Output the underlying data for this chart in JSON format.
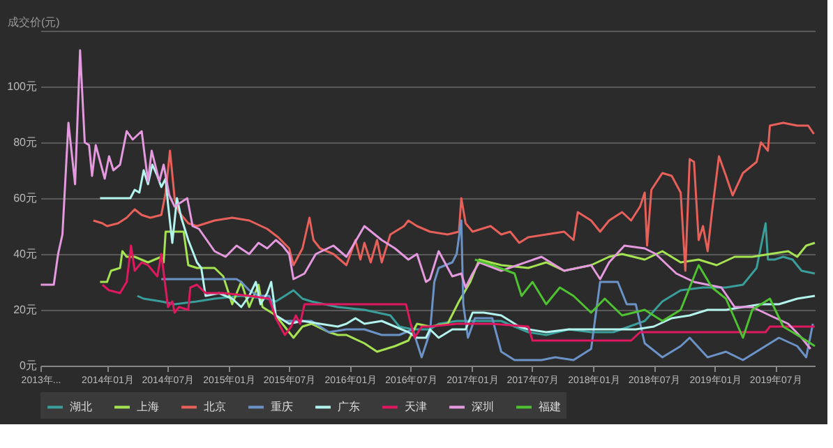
{
  "chart_data": {
    "type": "line",
    "ylabel": "成交价(元)",
    "grid": "y",
    "legend": "bottom",
    "xlim": [
      "2013-06-15",
      "2019-10-28"
    ],
    "xticks": [
      {
        "value": "2013-06-15",
        "label": "2013年..."
      },
      {
        "value": "2014-01-01",
        "label": "2014年01月"
      },
      {
        "value": "2014-07-01",
        "label": "2014年07月"
      },
      {
        "value": "2015-01-01",
        "label": "2015年01月"
      },
      {
        "value": "2015-07-01",
        "label": "2015年07月"
      },
      {
        "value": "2016-01-01",
        "label": "2016年01月"
      },
      {
        "value": "2016-07-01",
        "label": "2016年07月"
      },
      {
        "value": "2017-01-01",
        "label": "2017年01月"
      },
      {
        "value": "2017-07-01",
        "label": "2017年07月"
      },
      {
        "value": "2018-01-01",
        "label": "2018年01月"
      },
      {
        "value": "2018-07-01",
        "label": "2018年07月"
      },
      {
        "value": "2019-01-01",
        "label": "2019年01月"
      },
      {
        "value": "2019-07-01",
        "label": "2019年07月"
      }
    ],
    "ylim": [
      0,
      120
    ],
    "yticks": [
      {
        "value": 0,
        "label": "0元"
      },
      {
        "value": 20,
        "label": "20元"
      },
      {
        "value": 40,
        "label": "40元"
      },
      {
        "value": 60,
        "label": "60元"
      },
      {
        "value": 80,
        "label": "80元"
      },
      {
        "value": 100,
        "label": "100元"
      },
      {
        "value": 120,
        "label": null
      }
    ],
    "series": [
      {
        "name": "湖北",
        "color": "#3a9e9a",
        "x": [
          "2014-04-02",
          "2014-04-21",
          "2014-06-13",
          "2014-07-23",
          "2014-09-28",
          "2014-11-20",
          "2015-02-08",
          "2015-04-27",
          "2015-05-23",
          "2015-06-19",
          "2015-07-15",
          "2015-08-11",
          "2015-09-07",
          "2015-11-25",
          "2016-02-13",
          "2016-05-01",
          "2016-05-28",
          "2016-07-07",
          "2016-08-28",
          "2016-09-23",
          "2016-11-16",
          "2017-03-30",
          "2017-06-19",
          "2017-08-12",
          "2017-10-19",
          "2017-12-25",
          "2018-03-02",
          "2018-06-04",
          "2018-07-27",
          "2018-09-20",
          "2018-11-26",
          "2019-02-03",
          "2019-03-26",
          "2019-05-06",
          "2019-06-02",
          "2019-06-09",
          "2019-06-29",
          "2019-07-25",
          "2019-08-22",
          "2019-09-18",
          "2019-10-28"
        ],
        "values": [
          25,
          24,
          23,
          22,
          23,
          24,
          25,
          24,
          23,
          25,
          27,
          24,
          23,
          21,
          20,
          18,
          14,
          13,
          13,
          15,
          16,
          16,
          12,
          11,
          13,
          12,
          12,
          16,
          23,
          27,
          28,
          28,
          29,
          35,
          51,
          38,
          38,
          39,
          38,
          34,
          33
        ]
      },
      {
        "name": "上海",
        "color": "#a6e353",
        "x": [
          "2013-12-11",
          "2014-01-01",
          "2014-01-13",
          "2014-02-09",
          "2014-02-16",
          "2014-03-01",
          "2014-03-25",
          "2014-05-04",
          "2014-06-13",
          "2014-06-20",
          "2014-06-26",
          "2014-08-19",
          "2014-09-02",
          "2014-09-28",
          "2014-11-20",
          "2014-12-16",
          "2015-01-12",
          "2015-02-08",
          "2015-03-04",
          "2015-04-01",
          "2015-04-13",
          "2015-05-23",
          "2015-07-15",
          "2015-08-11",
          "2015-09-07",
          "2015-10-29",
          "2015-11-25",
          "2015-12-21",
          "2016-02-13",
          "2016-03-22",
          "2016-05-15",
          "2016-06-24",
          "2016-07-20",
          "2016-08-28",
          "2016-10-20",
          "2016-11-23",
          "2016-12-27",
          "2017-01-23",
          "2017-03-30",
          "2017-06-19",
          "2017-08-12",
          "2017-10-05",
          "2017-12-25",
          "2018-02-17",
          "2018-03-28",
          "2018-06-04",
          "2018-07-27",
          "2018-09-20",
          "2018-11-13",
          "2019-01-06",
          "2019-03-01",
          "2019-04-23",
          "2019-06-15",
          "2019-08-09",
          "2019-09-05",
          "2019-10-02",
          "2019-10-28"
        ],
        "values": [
          30,
          30,
          34,
          35,
          41,
          39,
          39,
          37,
          39,
          37,
          48,
          48,
          36,
          35,
          35,
          32,
          22,
          30,
          21,
          29,
          21,
          18,
          10,
          14,
          15,
          12,
          11,
          11,
          8,
          5,
          7,
          9,
          15,
          14,
          15,
          23,
          30,
          38,
          36,
          35,
          37,
          34,
          36,
          39,
          40,
          38,
          41,
          37,
          38,
          36,
          39,
          39,
          40,
          41,
          39,
          43,
          44
        ]
      },
      {
        "name": "北京",
        "color": "#e8605a",
        "x": [
          "2013-11-21",
          "2013-12-18",
          "2014-01-01",
          "2014-02-03",
          "2014-03-01",
          "2014-03-25",
          "2014-04-15",
          "2014-05-11",
          "2014-06-13",
          "2014-06-26",
          "2014-07-09",
          "2014-07-23",
          "2014-08-05",
          "2014-09-02",
          "2014-09-28",
          "2014-11-20",
          "2015-01-12",
          "2015-03-04",
          "2015-04-27",
          "2015-05-30",
          "2015-07-02",
          "2015-07-15",
          "2015-08-11",
          "2015-09-01",
          "2015-09-13",
          "2015-10-03",
          "2015-11-12",
          "2015-12-21",
          "2016-01-17",
          "2016-02-01",
          "2016-02-13",
          "2016-03-03",
          "2016-03-22",
          "2016-04-05",
          "2016-05-01",
          "2016-06-11",
          "2016-06-24",
          "2016-07-20",
          "2016-08-28",
          "2016-10-20",
          "2016-11-23",
          "2016-11-30",
          "2016-12-13",
          "2017-01-03",
          "2017-02-26",
          "2017-03-30",
          "2017-04-26",
          "2017-05-23",
          "2017-06-19",
          "2017-08-12",
          "2017-10-05",
          "2017-11-02",
          "2017-11-15",
          "2017-12-25",
          "2018-01-21",
          "2018-02-17",
          "2018-03-28",
          "2018-04-24",
          "2018-05-21",
          "2018-06-04",
          "2018-06-11",
          "2018-06-24",
          "2018-07-27",
          "2018-08-24",
          "2018-09-20",
          "2018-10-04",
          "2018-10-17",
          "2018-10-30",
          "2018-11-13",
          "2018-11-26",
          "2018-12-10",
          "2018-12-23",
          "2019-01-13",
          "2019-02-03",
          "2019-02-23",
          "2019-03-26",
          "2019-05-06",
          "2019-05-19",
          "2019-06-09",
          "2019-06-15",
          "2019-07-25",
          "2019-09-05",
          "2019-10-08",
          "2019-10-25"
        ],
        "values": [
          52,
          51,
          50,
          51,
          53,
          56,
          54,
          53,
          54,
          62,
          77,
          60,
          55,
          51,
          50,
          52,
          53,
          52,
          49,
          46,
          42,
          36,
          42,
          53,
          45,
          42,
          40,
          36,
          45,
          38,
          44,
          37,
          45,
          37,
          47,
          50,
          52,
          50,
          48,
          47,
          48,
          60,
          51,
          48,
          50,
          47,
          48,
          44,
          46,
          47,
          48,
          45,
          55,
          52,
          48,
          52,
          55,
          52,
          57,
          62,
          43,
          63,
          69,
          68,
          62,
          34,
          74,
          73,
          45,
          50,
          41,
          55,
          75,
          68,
          61,
          69,
          73,
          80,
          77,
          86,
          87,
          86,
          86,
          83
        ]
      },
      {
        "name": "重庆",
        "color": "#6b93c7",
        "x": [
          "2014-06-13",
          "2015-01-25",
          "2015-02-08",
          "2015-03-04",
          "2015-04-01",
          "2015-05-03",
          "2015-05-23",
          "2015-06-19",
          "2015-09-07",
          "2015-10-03",
          "2015-10-29",
          "2015-12-21",
          "2016-02-13",
          "2016-04-05",
          "2016-05-28",
          "2016-07-07",
          "2016-08-03",
          "2016-08-28",
          "2016-09-10",
          "2016-09-23",
          "2016-11-03",
          "2016-11-16",
          "2016-11-30",
          "2016-12-06",
          "2016-12-20",
          "2017-01-10",
          "2017-03-03",
          "2017-03-30",
          "2017-05-09",
          "2017-07-29",
          "2017-09-08",
          "2017-11-02",
          "2017-12-25",
          "2018-01-21",
          "2018-03-15",
          "2018-04-11",
          "2018-05-08",
          "2018-06-04",
          "2018-07-27",
          "2018-09-20",
          "2018-10-17",
          "2018-12-10",
          "2019-02-03",
          "2019-03-26",
          "2019-05-19",
          "2019-07-12",
          "2019-09-05",
          "2019-10-02",
          "2019-10-22"
        ],
        "values": [
          31,
          31,
          30,
          27,
          25,
          25,
          18,
          16,
          16,
          14,
          12,
          13,
          13,
          11,
          11,
          13,
          3,
          12,
          30,
          35,
          37,
          40,
          52,
          22,
          10,
          17,
          17,
          5,
          2,
          2,
          3,
          2,
          6,
          30,
          30,
          22,
          22,
          8,
          3,
          7,
          10,
          3,
          5,
          2,
          6,
          10,
          7,
          3,
          15
        ]
      },
      {
        "name": "广东",
        "color": "#b4f4ef",
        "x": [
          "2013-12-11",
          "2014-03-12",
          "2014-03-25",
          "2014-04-08",
          "2014-04-21",
          "2014-05-04",
          "2014-05-17",
          "2014-06-01",
          "2014-06-13",
          "2014-06-26",
          "2014-07-03",
          "2014-07-16",
          "2014-07-30",
          "2014-08-12",
          "2014-09-02",
          "2014-09-28",
          "2014-10-11",
          "2014-10-24",
          "2014-12-03",
          "2015-01-12",
          "2015-02-08",
          "2015-03-04",
          "2015-03-24",
          "2015-04-07",
          "2015-04-27",
          "2015-05-09",
          "2015-05-23",
          "2015-07-02",
          "2015-08-11",
          "2015-10-03",
          "2015-11-25",
          "2015-12-21",
          "2016-01-17",
          "2016-02-13",
          "2016-04-05",
          "2016-05-15",
          "2016-06-24",
          "2016-07-20",
          "2016-08-16",
          "2016-08-28",
          "2016-09-23",
          "2016-11-03",
          "2016-12-13",
          "2017-01-03",
          "2017-02-06",
          "2017-03-30",
          "2017-05-23",
          "2017-06-19",
          "2017-08-12",
          "2017-10-19",
          "2017-12-25",
          "2018-03-02",
          "2018-05-08",
          "2018-07-01",
          "2018-08-24",
          "2018-10-17",
          "2018-12-10",
          "2019-02-03",
          "2019-03-26",
          "2019-05-19",
          "2019-07-12",
          "2019-09-05",
          "2019-10-28"
        ],
        "values": [
          60,
          60,
          63,
          62,
          70,
          65,
          72,
          68,
          64,
          67,
          58,
          44,
          60,
          53,
          45,
          37,
          35,
          25,
          26,
          24,
          21,
          25,
          30,
          22,
          26,
          30,
          18,
          15,
          16,
          15,
          14,
          15,
          17,
          15,
          16,
          14,
          12,
          10,
          10,
          13,
          10,
          13,
          13,
          19,
          19,
          18,
          14,
          13,
          12,
          13,
          13,
          13,
          13,
          14,
          17,
          18,
          20,
          20,
          21,
          22,
          22,
          24,
          25
        ]
      },
      {
        "name": "天津",
        "color": "#e0185f",
        "x": [
          "2013-12-18",
          "2014-01-07",
          "2014-02-09",
          "2014-03-01",
          "2014-03-14",
          "2014-03-25",
          "2014-04-15",
          "2014-05-04",
          "2014-06-01",
          "2014-06-13",
          "2014-07-03",
          "2014-07-16",
          "2014-07-23",
          "2014-08-05",
          "2014-09-02",
          "2014-09-08",
          "2014-09-28",
          "2014-10-24",
          "2014-12-16",
          "2015-03-04",
          "2015-05-03",
          "2015-05-23",
          "2015-06-19",
          "2015-07-08",
          "2015-07-22",
          "2015-08-04",
          "2015-08-17",
          "2016-06-17",
          "2016-07-01",
          "2016-07-13",
          "2016-08-03",
          "2016-08-28",
          "2016-11-16",
          "2017-03-03",
          "2017-06-19",
          "2017-07-02",
          "2017-12-25",
          "2018-04-24",
          "2018-05-21",
          "2019-06-02",
          "2019-06-15",
          "2019-10-28"
        ],
        "values": [
          29,
          27,
          26,
          30,
          43,
          34,
          37,
          36,
          32,
          40,
          21,
          23,
          19,
          21,
          20,
          28,
          29,
          26,
          26,
          25,
          24,
          17,
          11,
          14,
          18,
          15,
          22,
          22,
          15,
          10,
          14,
          14,
          15,
          15,
          14,
          9,
          9,
          9,
          12,
          12,
          14,
          14
        ]
      },
      {
        "name": "深圳",
        "color": "#e59ae0",
        "x": [
          "2013-06-16",
          "2013-07-25",
          "2013-08-07",
          "2013-08-20",
          "2013-09-07",
          "2013-09-27",
          "2013-10-12",
          "2013-10-26",
          "2013-11-08",
          "2013-11-17",
          "2013-11-28",
          "2013-12-25",
          "2014-01-07",
          "2014-01-20",
          "2014-02-09",
          "2014-03-01",
          "2014-03-19",
          "2014-04-15",
          "2014-05-04",
          "2014-05-15",
          "2014-06-07",
          "2014-06-20",
          "2014-07-07",
          "2014-07-23",
          "2014-08-30",
          "2014-09-15",
          "2014-10-04",
          "2014-11-20",
          "2014-12-23",
          "2015-01-25",
          "2015-03-04",
          "2015-04-01",
          "2015-04-27",
          "2015-05-23",
          "2015-06-12",
          "2015-07-02",
          "2015-07-15",
          "2015-08-17",
          "2015-09-20",
          "2015-11-12",
          "2015-12-21",
          "2016-02-13",
          "2016-04-05",
          "2016-05-15",
          "2016-06-24",
          "2016-07-20",
          "2016-08-16",
          "2016-08-28",
          "2016-09-23",
          "2016-11-03",
          "2016-11-30",
          "2016-12-13",
          "2017-01-03",
          "2017-01-23",
          "2017-03-30",
          "2017-07-29",
          "2017-10-05",
          "2017-12-25",
          "2018-01-21",
          "2018-02-17",
          "2018-04-04",
          "2018-06-04",
          "2018-07-07",
          "2018-09-07",
          "2018-10-30",
          "2018-12-10",
          "2019-01-20",
          "2019-03-01",
          "2019-04-23",
          "2019-06-15",
          "2019-08-09",
          "2019-09-18",
          "2019-10-15"
        ],
        "values": [
          29,
          29,
          40,
          47,
          87,
          65,
          113,
          80,
          79,
          68,
          79,
          67,
          75,
          70,
          72,
          84,
          81,
          84,
          66,
          77,
          66,
          72,
          61,
          57,
          60,
          50,
          49,
          41,
          39,
          43,
          40,
          44,
          42,
          45,
          43,
          40,
          31,
          33,
          40,
          43,
          39,
          50,
          45,
          42,
          38,
          40,
          30,
          31,
          41,
          32,
          33,
          28,
          33,
          37,
          34,
          39,
          34,
          36,
          31,
          37,
          43,
          42,
          40,
          33,
          30,
          29,
          28,
          21,
          21,
          18,
          15,
          10,
          6
        ]
      },
      {
        "name": "福建",
        "color": "#4fc232",
        "x": [
          "2017-01-10",
          "2017-03-03",
          "2017-05-09",
          "2017-05-30",
          "2017-07-02",
          "2017-08-12",
          "2017-09-22",
          "2017-11-02",
          "2017-12-25",
          "2018-02-04",
          "2018-03-28",
          "2018-06-04",
          "2018-07-27",
          "2018-09-20",
          "2018-11-13",
          "2018-12-23",
          "2019-02-03",
          "2019-03-26",
          "2019-04-23",
          "2019-06-15",
          "2019-07-25",
          "2019-08-22",
          "2019-10-02",
          "2019-10-28"
        ],
        "values": [
          38,
          36,
          33,
          25,
          30,
          22,
          28,
          25,
          19,
          24,
          18,
          20,
          16,
          20,
          36,
          28,
          24,
          10,
          20,
          24,
          14,
          12,
          9,
          7
        ]
      }
    ]
  }
}
